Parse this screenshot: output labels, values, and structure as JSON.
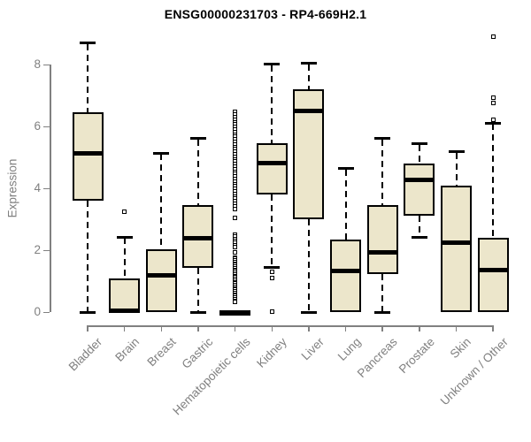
{
  "chart_data": {
    "type": "boxplot",
    "title": "ENSG00000231703 - RP4-669H2.1",
    "ylabel": "Expression",
    "ylim": [
      0,
      9
    ],
    "yticks": [
      0,
      2,
      4,
      6,
      8
    ],
    "grid": false,
    "colors": {
      "box_fill": "#ece6cb",
      "box_border": "#000000",
      "median": "#000000",
      "axis": "#808080",
      "title_text": "#000000"
    },
    "categories": [
      {
        "label": "Bladder",
        "low": 0,
        "q1": 3.6,
        "median": 5.15,
        "q3": 6.47,
        "high": 8.7,
        "outliers": []
      },
      {
        "label": "Brain",
        "low": 0,
        "q1": 0,
        "median": 0.05,
        "q3": 1.1,
        "high": 2.43,
        "outliers": [
          3.25
        ]
      },
      {
        "label": "Breast",
        "low": 0,
        "q1": 0,
        "median": 1.19,
        "q3": 2.05,
        "high": 5.14,
        "outliers": []
      },
      {
        "label": "Gastric",
        "low": 0,
        "q1": 1.43,
        "median": 2.4,
        "q3": 3.47,
        "high": 5.62,
        "outliers": []
      },
      {
        "label": "Hematopoietic cells",
        "low": 0,
        "q1": 0,
        "median": 0,
        "q3": 0,
        "high": 0,
        "outliers": [
          6.47,
          6.39,
          6.31,
          6.23,
          6.15,
          6.07,
          5.99,
          5.91,
          5.83,
          5.75,
          5.67,
          5.59,
          5.51,
          5.43,
          5.35,
          5.27,
          5.19,
          5.11,
          5.03,
          4.95,
          4.87,
          4.79,
          4.71,
          4.63,
          4.55,
          4.47,
          4.39,
          4.31,
          4.23,
          4.15,
          4.07,
          3.99,
          3.91,
          3.83,
          3.75,
          3.67,
          3.59,
          3.51,
          3.43,
          3.35,
          3.05,
          2.52,
          2.45,
          2.38,
          2.31,
          2.24,
          2.17,
          2.1,
          1.95,
          1.78,
          1.73,
          1.68,
          1.63,
          1.58,
          1.53,
          1.48,
          1.43,
          1.38,
          1.33,
          1.28,
          1.23,
          1.18,
          1.13,
          1.08,
          1.03,
          0.98,
          0.93,
          0.88,
          0.83,
          0.78,
          0.73,
          0.68,
          0.63,
          0.58,
          0.53,
          0.48,
          0.43,
          0.38,
          0.33
        ]
      },
      {
        "label": "Kidney",
        "low": 1.45,
        "q1": 3.81,
        "median": 4.83,
        "q3": 5.47,
        "high": 8.02,
        "outliers": [
          1.3,
          1.12,
          0.02
        ]
      },
      {
        "label": "Liver",
        "low": 0,
        "q1": 3.0,
        "median": 6.5,
        "q3": 7.22,
        "high": 8.05,
        "outliers": []
      },
      {
        "label": "Lung",
        "low": 0,
        "q1": 0,
        "median": 1.33,
        "q3": 2.36,
        "high": 4.65,
        "outliers": []
      },
      {
        "label": "Pancreas",
        "low": 0,
        "q1": 1.24,
        "median": 1.93,
        "q3": 3.47,
        "high": 5.62,
        "outliers": []
      },
      {
        "label": "Prostate",
        "low": 2.43,
        "q1": 3.12,
        "median": 4.28,
        "q3": 4.81,
        "high": 5.45,
        "outliers": []
      },
      {
        "label": "Skin",
        "low": 0,
        "q1": 0,
        "median": 2.25,
        "q3": 4.09,
        "high": 5.19,
        "outliers": []
      },
      {
        "label": "Unknown / Other",
        "low": 0,
        "q1": 0,
        "median": 1.36,
        "q3": 2.4,
        "high": 6.12,
        "outliers": [
          8.9,
          6.95,
          6.78,
          6.22
        ]
      }
    ]
  }
}
